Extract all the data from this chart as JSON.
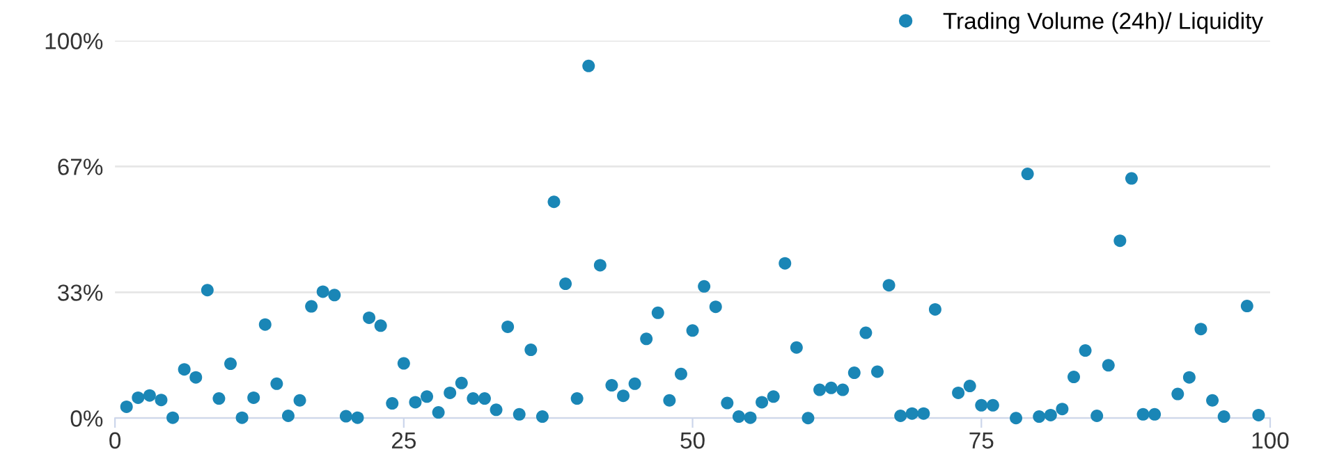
{
  "chart_data": {
    "type": "scatter",
    "xlim": [
      0,
      100
    ],
    "xticks": [
      0,
      25,
      50,
      75,
      100
    ],
    "ylim": [
      0,
      100
    ],
    "yticks": [
      {
        "value": 0,
        "label": "0%"
      },
      {
        "value": 33.333,
        "label": "33%"
      },
      {
        "value": 66.667,
        "label": "67%"
      },
      {
        "value": 100,
        "label": "100%"
      }
    ],
    "grid": "y",
    "legend": "top right",
    "marker": "circle",
    "series": [
      {
        "name": "Trading Volume (24h)/ Liquidity",
        "color": "#1a86b6",
        "x": [
          1,
          2,
          3,
          4,
          5,
          6,
          7,
          8,
          9,
          10,
          11,
          12,
          13,
          14,
          15,
          16,
          17,
          18,
          19,
          20,
          21,
          22,
          23,
          24,
          25,
          26,
          27,
          28,
          29,
          30,
          31,
          32,
          33,
          34,
          35,
          36,
          37,
          38,
          39,
          40,
          41,
          42,
          43,
          44,
          45,
          46,
          47,
          48,
          49,
          50,
          51,
          52,
          53,
          54,
          55,
          56,
          57,
          58,
          59,
          60,
          61,
          62,
          63,
          64,
          65,
          66,
          67,
          68,
          69,
          70,
          71,
          73,
          74,
          75,
          76,
          78,
          79,
          80,
          81,
          82,
          83,
          84,
          85,
          86,
          87,
          88,
          89,
          90,
          92,
          93,
          94,
          95,
          96,
          98,
          99
        ],
        "values": [
          3.0,
          5.4,
          6.0,
          4.8,
          0.1,
          12.9,
          10.8,
          33.9,
          5.2,
          14.4,
          0.1,
          5.4,
          24.8,
          9.1,
          0.6,
          4.7,
          29.6,
          33.5,
          32.6,
          0.5,
          0.1,
          26.6,
          24.5,
          3.9,
          14.5,
          4.2,
          5.7,
          1.5,
          6.7,
          9.3,
          5.2,
          5.2,
          2.2,
          24.2,
          1.0,
          18.1,
          0.4,
          57.3,
          35.6,
          5.2,
          93.3,
          40.5,
          8.7,
          5.9,
          9.1,
          21.0,
          27.9,
          4.7,
          11.7,
          23.2,
          34.9,
          29.5,
          4.0,
          0.4,
          0.1,
          4.2,
          5.7,
          41.0,
          18.7,
          0.0,
          7.5,
          8.0,
          7.5,
          12.0,
          22.6,
          12.3,
          35.2,
          0.6,
          1.2,
          1.2,
          28.8,
          6.7,
          8.5,
          3.4,
          3.4,
          0.0,
          64.7,
          0.4,
          0.8,
          2.4,
          10.9,
          17.9,
          0.6,
          14.0,
          47.0,
          63.5,
          1.0,
          1.0,
          6.4,
          10.8,
          23.6,
          4.7,
          0.4,
          29.7,
          0.8
        ]
      }
    ]
  }
}
